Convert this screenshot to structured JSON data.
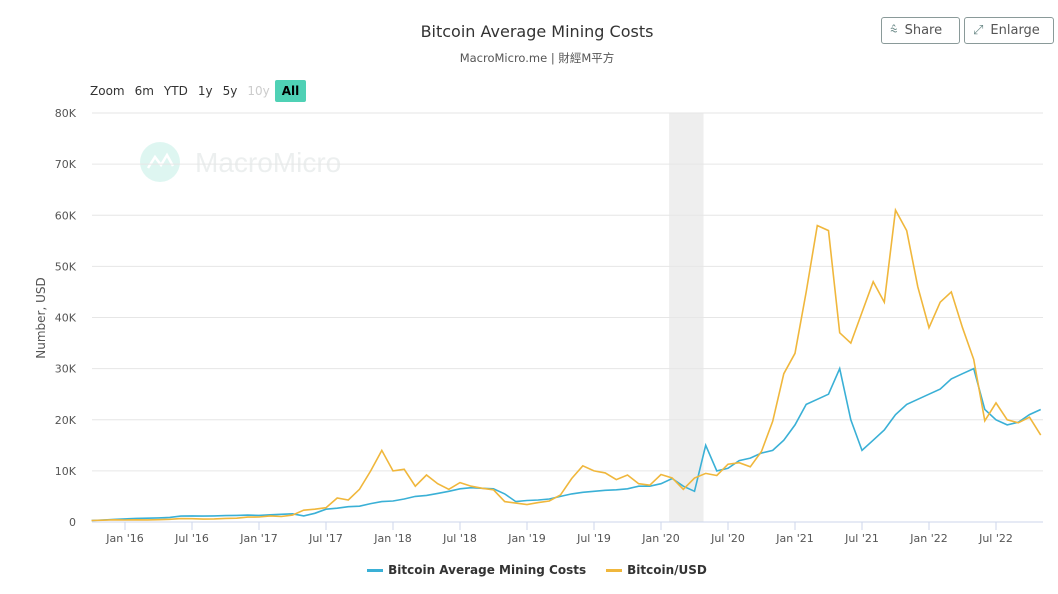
{
  "header": {
    "title": "Bitcoin Average Mining Costs",
    "subtitle": "MacroMicro.me | 財經M平方",
    "share_label": "Share",
    "enlarge_label": "Enlarge"
  },
  "zoom": {
    "label": "Zoom",
    "options": [
      "6m",
      "YTD",
      "1y",
      "5y",
      "10y",
      "All"
    ],
    "disabled": [
      "10y"
    ],
    "selected": "All"
  },
  "watermark": "MacroMicro",
  "chart_data": {
    "type": "line",
    "title": "Bitcoin Average Mining Costs",
    "ylabel": "Number, USD",
    "ylim": [
      0,
      80000
    ],
    "yticks": [
      "0",
      "10K",
      "20K",
      "30K",
      "40K",
      "50K",
      "60K",
      "70K",
      "80K"
    ],
    "xticks": [
      "Jan '16",
      "Jul '16",
      "Jan '17",
      "Jul '17",
      "Jan '18",
      "Jul '18",
      "Jan '19",
      "Jul '19",
      "Jan '20",
      "Jul '20",
      "Jan '21",
      "Jul '21",
      "Jan '22",
      "Jul '22"
    ],
    "grid": true,
    "legend": "bottom",
    "shaded_band": {
      "from": "2020-02",
      "to": "2020-04"
    },
    "x": [
      "2015-10",
      "2015-11",
      "2015-12",
      "2016-01",
      "2016-02",
      "2016-03",
      "2016-04",
      "2016-05",
      "2016-06",
      "2016-07",
      "2016-08",
      "2016-09",
      "2016-10",
      "2016-11",
      "2016-12",
      "2017-01",
      "2017-02",
      "2017-03",
      "2017-04",
      "2017-05",
      "2017-06",
      "2017-07",
      "2017-08",
      "2017-09",
      "2017-10",
      "2017-11",
      "2017-12",
      "2018-01",
      "2018-02",
      "2018-03",
      "2018-04",
      "2018-05",
      "2018-06",
      "2018-07",
      "2018-08",
      "2018-09",
      "2018-10",
      "2018-11",
      "2018-12",
      "2019-01",
      "2019-02",
      "2019-03",
      "2019-04",
      "2019-05",
      "2019-06",
      "2019-07",
      "2019-08",
      "2019-09",
      "2019-10",
      "2019-11",
      "2019-12",
      "2020-01",
      "2020-02",
      "2020-03",
      "2020-04",
      "2020-05",
      "2020-06",
      "2020-07",
      "2020-08",
      "2020-09",
      "2020-10",
      "2020-11",
      "2020-12",
      "2021-01",
      "2021-02",
      "2021-03",
      "2021-04",
      "2021-05",
      "2021-06",
      "2021-07",
      "2021-08",
      "2021-09",
      "2021-10",
      "2021-11",
      "2021-12",
      "2022-01",
      "2022-02",
      "2022-03",
      "2022-04",
      "2022-05",
      "2022-06",
      "2022-07",
      "2022-08",
      "2022-09",
      "2022-10",
      "2022-11"
    ],
    "series": [
      {
        "name": "Bitcoin Average Mining Costs",
        "color": "#3ab0d6",
        "values": [
          300,
          400,
          500,
          600,
          700,
          750,
          800,
          900,
          1150,
          1200,
          1150,
          1200,
          1250,
          1300,
          1350,
          1300,
          1400,
          1500,
          1600,
          1200,
          1700,
          2500,
          2700,
          3000,
          3100,
          3600,
          4000,
          4100,
          4500,
          5000,
          5200,
          5600,
          6000,
          6500,
          6700,
          6600,
          6500,
          5500,
          4000,
          4200,
          4300,
          4500,
          5000,
          5500,
          5800,
          6000,
          6200,
          6300,
          6500,
          7000,
          7000,
          7500,
          8500,
          7000,
          6000,
          15000,
          10000,
          10500,
          12000,
          12500,
          13500,
          14000,
          16000,
          19000,
          23000,
          24000,
          25000,
          30000,
          20000,
          14000,
          16000,
          18000,
          21000,
          23000,
          24000,
          25000,
          26000,
          28000,
          29000,
          30000,
          22000,
          20000,
          19000,
          19500,
          21000,
          22000
        ]
      },
      {
        "name": "Bitcoin/USD",
        "color": "#f0b73c",
        "values": [
          300,
          350,
          430,
          400,
          430,
          420,
          450,
          530,
          670,
          650,
          570,
          610,
          700,
          740,
          960,
          970,
          1190,
          1070,
          1350,
          2300,
          2500,
          2800,
          4700,
          4300,
          6400,
          10000,
          14000,
          10000,
          10300,
          7000,
          9200,
          7500,
          6400,
          7700,
          7000,
          6600,
          6300,
          4000,
          3700,
          3400,
          3800,
          4100,
          5300,
          8500,
          11000,
          10000,
          9600,
          8300,
          9200,
          7500,
          7200,
          9300,
          8600,
          6400,
          8600,
          9500,
          9100,
          11300,
          11600,
          10800,
          13800,
          19700,
          29000,
          33000,
          45000,
          58000,
          57000,
          37000,
          35000,
          41000,
          47000,
          43000,
          61000,
          57000,
          46000,
          38000,
          43000,
          45000,
          38000,
          31800,
          19800,
          23300,
          20000,
          19400,
          20500,
          17000
        ]
      }
    ]
  }
}
